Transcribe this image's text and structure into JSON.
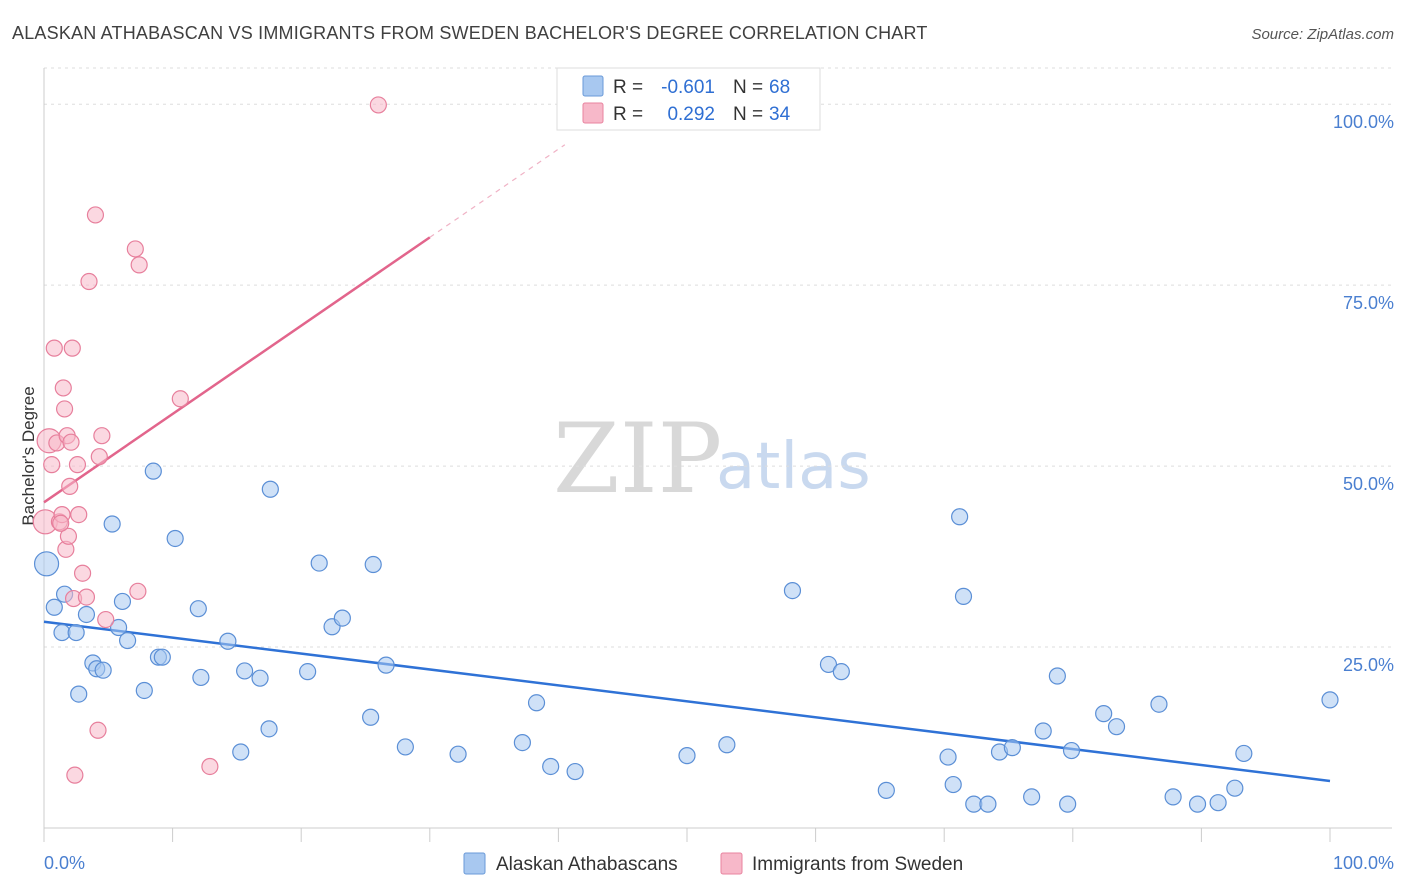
{
  "chart_data": {
    "type": "scatter",
    "title": "ALASKAN ATHABASCAN VS IMMIGRANTS FROM SWEDEN BACHELOR'S DEGREE CORRELATION CHART",
    "source": "Source: ZipAtlas.com",
    "xlabel": "",
    "ylabel": "Bachelor's Degree",
    "xlim": [
      0,
      100
    ],
    "ylim": [
      0,
      105
    ],
    "x_tick_labels": [
      "0.0%",
      "100.0%"
    ],
    "y_tick_labels": [
      "25.0%",
      "50.0%",
      "75.0%",
      "100.0%"
    ],
    "y_tick_values": [
      25,
      50,
      75,
      100
    ],
    "watermark": {
      "part1": "ZIP",
      "part2": "atlas"
    },
    "legend": {
      "r_label": "R =",
      "n_label": "N =",
      "entries": [
        {
          "name": "Alaskan Athabascans",
          "r": "-0.601",
          "n": "68",
          "color": "#a8c8f0",
          "stroke": "#6a9ad8"
        },
        {
          "name": "Immigrants from Sweden",
          "r": "0.292",
          "n": "34",
          "color": "#f7b8c9",
          "stroke": "#e8839f"
        }
      ]
    },
    "series": [
      {
        "name": "Alaskan Athabascans",
        "color": "#a8c8f0",
        "edge": "#5b8fd6",
        "trend_color": "#2f72d6",
        "trend": {
          "x": [
            0,
            100
          ],
          "y": [
            28.5,
            6.5
          ]
        },
        "points": [
          [
            0.2,
            36.5
          ],
          [
            0.8,
            30.5
          ],
          [
            1.4,
            27
          ],
          [
            1.6,
            32.3
          ],
          [
            2.5,
            27
          ],
          [
            2.7,
            18.5
          ],
          [
            3.3,
            29.5
          ],
          [
            3.8,
            22.8
          ],
          [
            4.1,
            22
          ],
          [
            4.6,
            21.8
          ],
          [
            5.3,
            42
          ],
          [
            5.8,
            27.7
          ],
          [
            6.1,
            31.3
          ],
          [
            6.5,
            25.9
          ],
          [
            7.8,
            19
          ],
          [
            8.5,
            49.3
          ],
          [
            8.9,
            23.6
          ],
          [
            9.2,
            23.6
          ],
          [
            10.2,
            40
          ],
          [
            12,
            30.3
          ],
          [
            12.2,
            20.8
          ],
          [
            14.3,
            25.8
          ],
          [
            15.3,
            10.5
          ],
          [
            15.6,
            21.7
          ],
          [
            16.8,
            20.7
          ],
          [
            17.5,
            13.7
          ],
          [
            17.6,
            46.8
          ],
          [
            20.5,
            21.6
          ],
          [
            21.4,
            36.6
          ],
          [
            22.4,
            27.8
          ],
          [
            23.2,
            29
          ],
          [
            25.4,
            15.3
          ],
          [
            25.6,
            36.4
          ],
          [
            26.6,
            22.5
          ],
          [
            28.1,
            11.2
          ],
          [
            32.2,
            10.2
          ],
          [
            37.2,
            11.8
          ],
          [
            38.3,
            17.3
          ],
          [
            39.4,
            8.5
          ],
          [
            41.3,
            7.8
          ],
          [
            50,
            10
          ],
          [
            53.1,
            11.5
          ],
          [
            58.2,
            32.8
          ],
          [
            61,
            22.6
          ],
          [
            62,
            21.6
          ],
          [
            65.5,
            5.2
          ],
          [
            70.3,
            9.8
          ],
          [
            70.7,
            6
          ],
          [
            71.2,
            43
          ],
          [
            71.5,
            32
          ],
          [
            72.3,
            3.3
          ],
          [
            73.4,
            3.3
          ],
          [
            74.3,
            10.5
          ],
          [
            75.3,
            11.1
          ],
          [
            76.8,
            4.3
          ],
          [
            77.7,
            13.4
          ],
          [
            78.8,
            21
          ],
          [
            79.6,
            3.3
          ],
          [
            79.9,
            10.7
          ],
          [
            82.4,
            15.8
          ],
          [
            83.4,
            14
          ],
          [
            86.7,
            17.1
          ],
          [
            87.8,
            4.3
          ],
          [
            89.7,
            3.3
          ],
          [
            91.3,
            3.5
          ],
          [
            92.6,
            5.5
          ],
          [
            93.3,
            10.3
          ],
          [
            100,
            17.7
          ]
        ]
      },
      {
        "name": "Immigrants from Sweden",
        "color": "#f7b8c9",
        "edge": "#e77f9c",
        "trend_color": "#e2658c",
        "trend": {
          "x": [
            0,
            30
          ],
          "y": [
            45,
            81.6
          ]
        },
        "trend_dashed": {
          "x": [
            30,
            40.5
          ],
          "y": [
            81.6,
            94.4
          ]
        },
        "points": [
          [
            0.1,
            42.3
          ],
          [
            0.4,
            53.5
          ],
          [
            0.6,
            50.2
          ],
          [
            0.8,
            66.3
          ],
          [
            1,
            53.2
          ],
          [
            1.2,
            42.3
          ],
          [
            1.4,
            43.3
          ],
          [
            1.5,
            60.8
          ],
          [
            1.6,
            57.9
          ],
          [
            1.7,
            38.5
          ],
          [
            1.8,
            54.2
          ],
          [
            1.9,
            40.3
          ],
          [
            2,
            47.2
          ],
          [
            2.1,
            53.3
          ],
          [
            2.2,
            66.3
          ],
          [
            2.3,
            31.7
          ],
          [
            2.4,
            7.3
          ],
          [
            2.6,
            50.2
          ],
          [
            2.7,
            43.3
          ],
          [
            3,
            35.2
          ],
          [
            3.3,
            31.9
          ],
          [
            3.5,
            75.5
          ],
          [
            4,
            84.7
          ],
          [
            4.2,
            13.5
          ],
          [
            4.3,
            51.3
          ],
          [
            4.5,
            54.2
          ],
          [
            4.8,
            28.8
          ],
          [
            7.1,
            80
          ],
          [
            7.3,
            32.7
          ],
          [
            7.4,
            77.8
          ],
          [
            10.6,
            59.3
          ],
          [
            12.9,
            8.5
          ],
          [
            26,
            99.9
          ],
          [
            1.3,
            42.1
          ]
        ]
      }
    ]
  }
}
